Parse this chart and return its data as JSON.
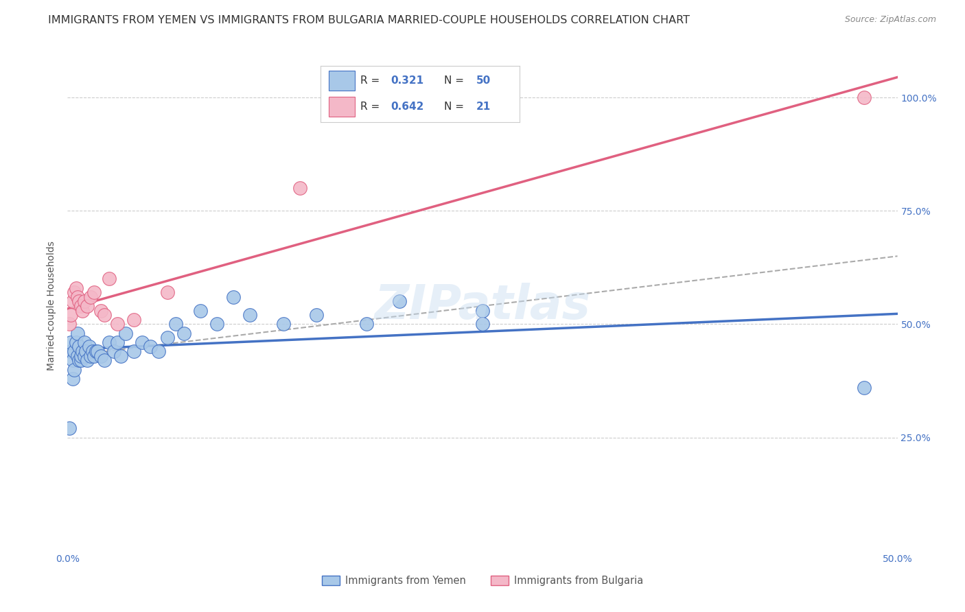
{
  "title": "IMMIGRANTS FROM YEMEN VS IMMIGRANTS FROM BULGARIA MARRIED-COUPLE HOUSEHOLDS CORRELATION CHART",
  "source": "Source: ZipAtlas.com",
  "ylabel": "Married-couple Households",
  "xlim": [
    0.0,
    0.5
  ],
  "ylim": [
    0.0,
    1.08
  ],
  "yticks": [
    0.0,
    0.25,
    0.5,
    0.75,
    1.0
  ],
  "ytick_labels": [
    "",
    "25.0%",
    "50.0%",
    "75.0%",
    "100.0%"
  ],
  "xticks": [
    0.0,
    0.1,
    0.2,
    0.3,
    0.4,
    0.5
  ],
  "xtick_labels": [
    "0.0%",
    "",
    "",
    "",
    "",
    "50.0%"
  ],
  "yemen_R": 0.321,
  "yemen_N": 50,
  "bulgaria_R": 0.642,
  "bulgaria_N": 21,
  "yemen_color": "#a8c8e8",
  "bulgaria_color": "#f4b8c8",
  "yemen_line_color": "#4472c4",
  "bulgaria_line_color": "#e06080",
  "diagonal_color": "#aaaaaa",
  "background_color": "#ffffff",
  "grid_color": "#cccccc",
  "yemen_scatter_x": [
    0.001,
    0.002,
    0.002,
    0.003,
    0.003,
    0.004,
    0.004,
    0.005,
    0.006,
    0.006,
    0.007,
    0.007,
    0.008,
    0.008,
    0.009,
    0.01,
    0.01,
    0.011,
    0.012,
    0.013,
    0.014,
    0.015,
    0.016,
    0.017,
    0.018,
    0.02,
    0.022,
    0.025,
    0.028,
    0.03,
    0.032,
    0.035,
    0.04,
    0.045,
    0.05,
    0.055,
    0.06,
    0.065,
    0.07,
    0.08,
    0.09,
    0.1,
    0.11,
    0.13,
    0.15,
    0.18,
    0.2,
    0.25,
    0.25,
    0.48
  ],
  "yemen_scatter_y": [
    0.27,
    0.44,
    0.46,
    0.42,
    0.38,
    0.4,
    0.44,
    0.46,
    0.43,
    0.48,
    0.42,
    0.45,
    0.42,
    0.43,
    0.44,
    0.43,
    0.46,
    0.44,
    0.42,
    0.45,
    0.43,
    0.44,
    0.43,
    0.44,
    0.44,
    0.43,
    0.42,
    0.46,
    0.44,
    0.46,
    0.43,
    0.48,
    0.44,
    0.46,
    0.45,
    0.44,
    0.47,
    0.5,
    0.48,
    0.53,
    0.5,
    0.56,
    0.52,
    0.5,
    0.52,
    0.5,
    0.55,
    0.53,
    0.5,
    0.36
  ],
  "bulgaria_scatter_x": [
    0.001,
    0.002,
    0.003,
    0.004,
    0.005,
    0.006,
    0.007,
    0.008,
    0.009,
    0.01,
    0.012,
    0.014,
    0.016,
    0.02,
    0.022,
    0.025,
    0.03,
    0.04,
    0.06,
    0.14,
    0.48
  ],
  "bulgaria_scatter_y": [
    0.5,
    0.52,
    0.55,
    0.57,
    0.58,
    0.56,
    0.55,
    0.54,
    0.53,
    0.55,
    0.54,
    0.56,
    0.57,
    0.53,
    0.52,
    0.6,
    0.5,
    0.51,
    0.57,
    0.8,
    1.0
  ],
  "legend_labels": [
    "Immigrants from Yemen",
    "Immigrants from Bulgaria"
  ],
  "title_fontsize": 11.5,
  "source_fontsize": 9,
  "axis_label_fontsize": 10,
  "tick_fontsize": 10,
  "legend_fontsize": 12
}
